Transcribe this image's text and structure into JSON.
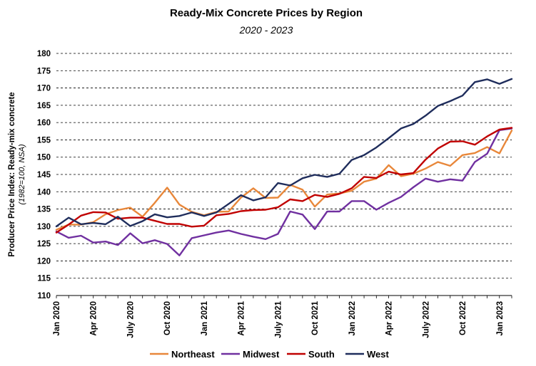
{
  "chart_data": {
    "type": "line",
    "title": "Ready-Mix Concrete Prices by Region",
    "subtitle": "2020 - 2023",
    "ylabel": "Producer Price Index: Ready-mix concrete",
    "ylabel_note": "(1982=100, NSA)",
    "xlabel": "",
    "ylim": [
      110,
      180
    ],
    "yticks": [
      110,
      115,
      120,
      125,
      130,
      135,
      140,
      145,
      150,
      155,
      160,
      165,
      170,
      175,
      180
    ],
    "x": [
      "Jan 2020",
      "Feb 2020",
      "Mar 2020",
      "Apr 2020",
      "May 2020",
      "Jun 2020",
      "July 2020",
      "Aug 2020",
      "Sep 2020",
      "Oct 2020",
      "Nov 2020",
      "Dec 2020",
      "Jan 2021",
      "Feb 2021",
      "Mar 2021",
      "Apr 2021",
      "May 2021",
      "Jun 2021",
      "July 2021",
      "Aug 2021",
      "Sep 2021",
      "Oct 2021",
      "Nov 2021",
      "Dec 2021",
      "Jan 2022",
      "Feb 2022",
      "Mar 2022",
      "Apr 2022",
      "May 2022",
      "Jun 2022",
      "July 2022",
      "Aug 2022",
      "Sep 2022",
      "Oct 2022",
      "Nov 2022",
      "Dec 2022",
      "Jan 2023",
      "Feb 2023"
    ],
    "xtick_labels": [
      {
        "index": 0,
        "label": "Jan 2020"
      },
      {
        "index": 3,
        "label": "Apr 2020"
      },
      {
        "index": 6,
        "label": "July 2020"
      },
      {
        "index": 9,
        "label": "Oct 2020"
      },
      {
        "index": 12,
        "label": "Jan 2021"
      },
      {
        "index": 15,
        "label": "Apr 2021"
      },
      {
        "index": 18,
        "label": "July 2021"
      },
      {
        "index": 21,
        "label": "Oct 2021"
      },
      {
        "index": 24,
        "label": "Jan 2022"
      },
      {
        "index": 27,
        "label": "Apr 2022"
      },
      {
        "index": 30,
        "label": "July 2022"
      },
      {
        "index": 33,
        "label": "Oct 2022"
      },
      {
        "index": 36,
        "label": "Jan 2023"
      }
    ],
    "grid": true,
    "legend_position": "bottom",
    "series": [
      {
        "name": "Northeast",
        "color": "#E8873A",
        "values": [
          129.0,
          130.5,
          130.5,
          131.2,
          133.5,
          134.7,
          135.4,
          132.8,
          136.8,
          141.2,
          136.3,
          134.2,
          133.2,
          134.2,
          134.3,
          138.3,
          141.0,
          138.2,
          138.3,
          142.0,
          140.6,
          135.7,
          139.2,
          139.5,
          140.3,
          142.9,
          143.8,
          147.7,
          144.5,
          145.2,
          146.7,
          148.6,
          147.5,
          150.6,
          151.2,
          152.9,
          151.1,
          157.7
        ]
      },
      {
        "name": "Midwest",
        "color": "#7030A0",
        "values": [
          128.5,
          126.7,
          127.3,
          125.3,
          125.6,
          124.6,
          128.0,
          125.1,
          126.0,
          124.9,
          121.6,
          126.6,
          127.4,
          128.2,
          128.8,
          127.8,
          127.0,
          126.3,
          127.8,
          134.3,
          133.4,
          129.2,
          134.3,
          134.3,
          137.3,
          137.3,
          134.8,
          136.8,
          138.5,
          141.3,
          143.8,
          142.9,
          143.6,
          143.2,
          148.6,
          151.0,
          157.8,
          158.3
        ]
      },
      {
        "name": "South",
        "color": "#C00000",
        "values": [
          128.2,
          130.5,
          133.1,
          134.1,
          134.0,
          132.2,
          132.5,
          132.5,
          131.6,
          130.7,
          130.7,
          129.9,
          130.2,
          133.2,
          133.6,
          134.4,
          134.7,
          134.8,
          135.5,
          137.8,
          137.3,
          139.1,
          138.5,
          139.4,
          141.0,
          144.3,
          144.0,
          145.8,
          145.0,
          145.4,
          149.3,
          152.5,
          154.5,
          154.6,
          153.6,
          156.0,
          158.0,
          158.5
        ]
      },
      {
        "name": "West",
        "color": "#1F2D5C",
        "values": [
          130.0,
          132.5,
          130.6,
          131.0,
          130.6,
          132.8,
          130.1,
          131.5,
          133.5,
          132.6,
          133.0,
          134.0,
          133.0,
          134.0,
          136.5,
          139.0,
          137.5,
          138.4,
          142.5,
          141.8,
          143.9,
          144.9,
          144.3,
          145.2,
          149.2,
          150.6,
          152.8,
          155.5,
          158.3,
          159.6,
          162.0,
          164.8,
          166.2,
          167.8,
          171.7,
          172.5,
          171.2,
          172.6
        ]
      }
    ]
  }
}
